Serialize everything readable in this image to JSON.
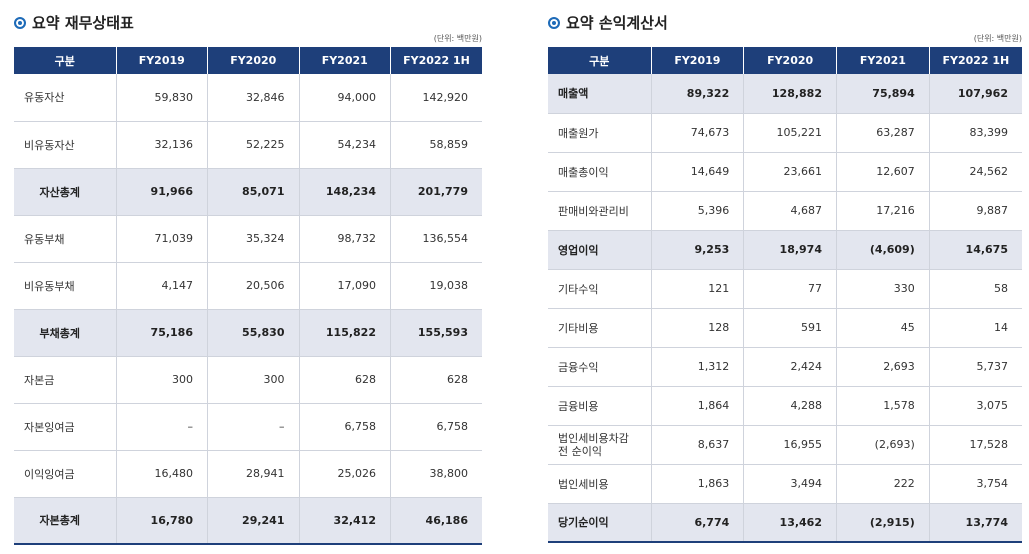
{
  "balance": {
    "title": "요약 재무상태표",
    "unit": "(단위: 백만원)",
    "headers": [
      "구분",
      "FY2019",
      "FY2020",
      "FY2021",
      "FY2022 1H"
    ],
    "rows": [
      {
        "label": "유동자산",
        "values": [
          "59,830",
          "32,846",
          "94,000",
          "142,920"
        ]
      },
      {
        "label": "비유동자산",
        "values": [
          "32,136",
          "52,225",
          "54,234",
          "58,859"
        ]
      },
      {
        "label": "자산총계",
        "values": [
          "91,966",
          "85,071",
          "148,234",
          "201,779"
        ]
      },
      {
        "label": "유동부채",
        "values": [
          "71,039",
          "35,324",
          "98,732",
          "136,554"
        ]
      },
      {
        "label": "비유동부채",
        "values": [
          "4,147",
          "20,506",
          "17,090",
          "19,038"
        ]
      },
      {
        "label": "부채총계",
        "values": [
          "75,186",
          "55,830",
          "115,822",
          "155,593"
        ]
      },
      {
        "label": "자본금",
        "values": [
          "300",
          "300",
          "628",
          "628"
        ]
      },
      {
        "label": "자본잉여금",
        "values": [
          "–",
          "–",
          "6,758",
          "6,758"
        ]
      },
      {
        "label": "이익잉여금",
        "values": [
          "16,480",
          "28,941",
          "25,026",
          "38,800"
        ]
      },
      {
        "label": "자본총계",
        "values": [
          "16,780",
          "29,241",
          "32,412",
          "46,186"
        ]
      }
    ]
  },
  "income": {
    "title": "요약 손익계산서",
    "unit": "(단위: 백만원)",
    "headers": [
      "구분",
      "FY2019",
      "FY2020",
      "FY2021",
      "FY2022 1H"
    ],
    "rows": [
      {
        "label": "매출액",
        "values": [
          "89,322",
          "128,882",
          "75,894",
          "107,962"
        ]
      },
      {
        "label": "매출원가",
        "values": [
          "74,673",
          "105,221",
          "63,287",
          "83,399"
        ]
      },
      {
        "label": "매출총이익",
        "values": [
          "14,649",
          "23,661",
          "12,607",
          "24,562"
        ]
      },
      {
        "label": "판매비와관리비",
        "values": [
          "5,396",
          "4,687",
          "17,216",
          "9,887"
        ]
      },
      {
        "label": "영업이익",
        "values": [
          "9,253",
          "18,974",
          "(4,609)",
          "14,675"
        ]
      },
      {
        "label": "기타수익",
        "values": [
          "121",
          "77",
          "330",
          "58"
        ]
      },
      {
        "label": "기타비용",
        "values": [
          "128",
          "591",
          "45",
          "14"
        ]
      },
      {
        "label": "금융수익",
        "values": [
          "1,312",
          "2,424",
          "2,693",
          "5,737"
        ]
      },
      {
        "label": "금융비용",
        "values": [
          "1,864",
          "4,288",
          "1,578",
          "3,075"
        ]
      },
      {
        "label": "법인세비용차감전 순이익",
        "values": [
          "8,637",
          "16,955",
          "(2,693)",
          "17,528"
        ]
      },
      {
        "label": "법인세비용",
        "values": [
          "1,863",
          "3,494",
          "222",
          "3,754"
        ]
      },
      {
        "label": "당기순이익",
        "values": [
          "6,774",
          "13,462",
          "(2,915)",
          "13,774"
        ]
      }
    ]
  }
}
